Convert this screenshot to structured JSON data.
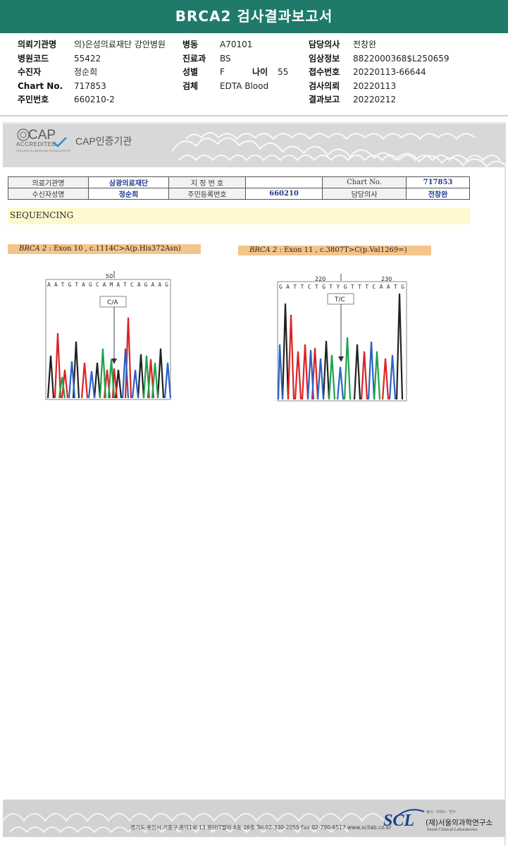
{
  "report_title": "BRCA2 검사결과보고서",
  "header": {
    "col1": [
      {
        "label": "의뢰기관명",
        "value": "의)은성의료재단 강안병원"
      },
      {
        "label": "병원코드",
        "value": "55422"
      },
      {
        "label": "수진자",
        "value": "정순희"
      },
      {
        "label": "Chart No.",
        "value": "717853"
      },
      {
        "label": "주민번호",
        "value": "660210-2"
      }
    ],
    "col2": [
      {
        "label": "병동",
        "value": "A70101"
      },
      {
        "label": "진료과",
        "value": "BS"
      },
      {
        "label": "성별",
        "value": "F"
      },
      {
        "label": "검체",
        "value": "EDTA Blood"
      }
    ],
    "age": {
      "label": "나이",
      "value": "55"
    },
    "col3": [
      {
        "label": "담당의사",
        "value": "전창완"
      },
      {
        "label": "임상정보",
        "value": "8822000368$L250659"
      },
      {
        "label": "접수번호",
        "value": "20220113-66644"
      },
      {
        "label": "검사의뢰",
        "value": "20220113"
      },
      {
        "label": "결과보고",
        "value": "20220212"
      }
    ]
  },
  "cap": {
    "logo_text": "CAP",
    "accredited": "ACCREDITED",
    "small": "COLLEGE of AMERICAN PATHOLOGISTS",
    "title": "CAP인증기관"
  },
  "info_table": {
    "r1": [
      "의료기관명",
      "삼광의료재단",
      "지 정 번 호",
      "",
      "Chart No.",
      "717853"
    ],
    "r2": [
      "수신자성명",
      "정순희",
      "주민등록번호",
      "660210",
      "담당의사",
      "전창완"
    ]
  },
  "section_label": "SEQUENCING",
  "mutation1": {
    "gene": "BRCA 2",
    "desc": " : Exon 10 , c.1114C>A(p.His372Asn)",
    "tick": "50",
    "seq": "A A T G T A G C A M A T C A G A A G",
    "call": "C/A"
  },
  "mutation2": {
    "gene": "BRCA 2",
    "desc": " : Exon 11 , c.3807T>C(p.Val1269=)",
    "tick1": "220",
    "tick2": "230",
    "seq": "G A T T C T G T Y G T T T C A A T G",
    "call": "T/C"
  },
  "footer": {
    "address": "경기도 용인시 기흥구 흥덕1로 13 흥덕IT밸리 A동 26층  Tel.02-330-2055  Fax.02-790-6517  www.scllab.co.kr",
    "logo": "SCL",
    "tagline": "봉사 · 서비스 · 연구",
    "name_kr": "(재)서울의과학연구소",
    "name_en": "Seoul Clinical Laboratories"
  }
}
